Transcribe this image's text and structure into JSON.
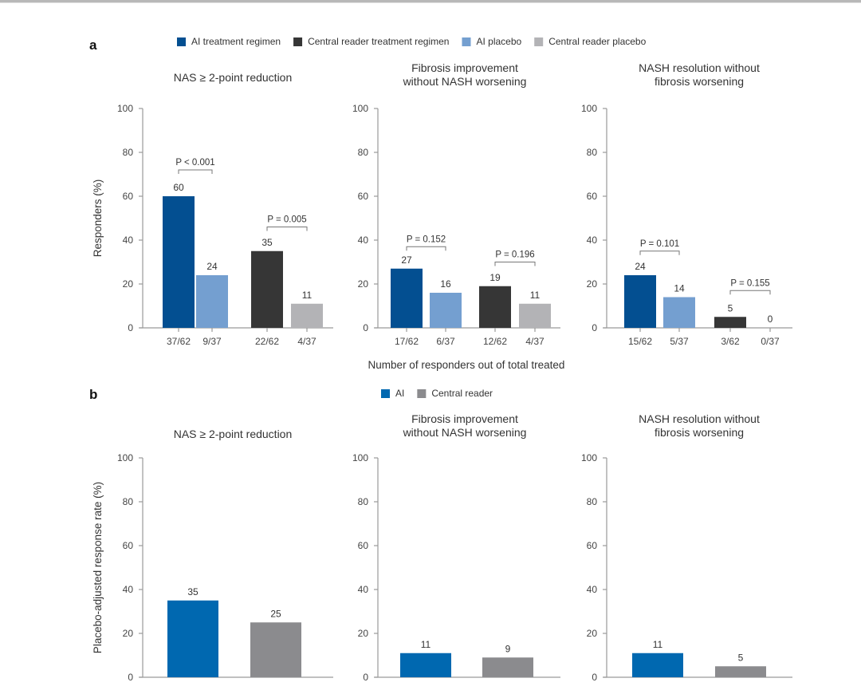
{
  "chart_data": [
    {
      "panel": "a",
      "type": "bar",
      "ylabel": "Responders (%)",
      "xlabel": "Number of responders out of total treated",
      "ylim": [
        0,
        100
      ],
      "yticks": [
        0,
        20,
        40,
        60,
        80,
        100
      ],
      "legend": [
        {
          "name": "AI treatment regimen",
          "color": "#034f91"
        },
        {
          "name": "Central reader treatment regimen",
          "color": "#363636"
        },
        {
          "name": "AI placebo",
          "color": "#749fd0"
        },
        {
          "name": "Central reader placebo",
          "color": "#b3b3b6"
        }
      ],
      "legend_position": "top-center",
      "subplots": [
        {
          "title": [
            "NAS ≥ 2-point reduction"
          ],
          "bars": [
            {
              "series": 0,
              "category": "37/62",
              "value": 60,
              "label": "60"
            },
            {
              "series": 2,
              "category": "9/37",
              "value": 24,
              "label": "24"
            },
            {
              "series": 1,
              "category": "22/62",
              "value": 35,
              "label": "35"
            },
            {
              "series": 3,
              "category": "4/37",
              "value": 11,
              "label": "11"
            }
          ],
          "pvalues": [
            {
              "between": [
                0,
                1
              ],
              "text": "P < 0.001",
              "at": 72
            },
            {
              "between": [
                2,
                3
              ],
              "text": "P = 0.005",
              "at": 46
            }
          ]
        },
        {
          "title": [
            "Fibrosis improvement",
            "without NASH worsening"
          ],
          "bars": [
            {
              "series": 0,
              "category": "17/62",
              "value": 27,
              "label": "27"
            },
            {
              "series": 2,
              "category": "6/37",
              "value": 16,
              "label": "16"
            },
            {
              "series": 1,
              "category": "12/62",
              "value": 19,
              "label": "19"
            },
            {
              "series": 3,
              "category": "4/37",
              "value": 11,
              "label": "11"
            }
          ],
          "pvalues": [
            {
              "between": [
                0,
                1
              ],
              "text": "P = 0.152",
              "at": 37
            },
            {
              "between": [
                2,
                3
              ],
              "text": "P = 0.196",
              "at": 30
            }
          ]
        },
        {
          "title": [
            "NASH resolution without",
            "fibrosis worsening"
          ],
          "bars": [
            {
              "series": 0,
              "category": "15/62",
              "value": 24,
              "label": "24"
            },
            {
              "series": 2,
              "category": "5/37",
              "value": 14,
              "label": "14"
            },
            {
              "series": 1,
              "category": "3/62",
              "value": 5,
              "label": "5"
            },
            {
              "series": 3,
              "category": "0/37",
              "value": 0,
              "label": "0"
            }
          ],
          "pvalues": [
            {
              "between": [
                0,
                1
              ],
              "text": "P = 0.101",
              "at": 35
            },
            {
              "between": [
                2,
                3
              ],
              "text": "P = 0.155",
              "at": 17
            }
          ]
        }
      ]
    },
    {
      "panel": "b",
      "type": "bar",
      "ylabel": "Placebo-adjusted response rate (%)",
      "xlabel": "",
      "ylim": [
        0,
        100
      ],
      "yticks": [
        0,
        20,
        40,
        60,
        80,
        100
      ],
      "legend": [
        {
          "name": "AI",
          "color": "#0068b0"
        },
        {
          "name": "Central reader",
          "color": "#8b8b8e"
        }
      ],
      "legend_position": "top-center",
      "subplots": [
        {
          "title": [
            "NAS ≥ 2-point reduction"
          ],
          "bars": [
            {
              "series": 0,
              "category": "AI",
              "value": 35,
              "label": "35"
            },
            {
              "series": 1,
              "category": "Central reader",
              "value": 25,
              "label": "25"
            }
          ]
        },
        {
          "title": [
            "Fibrosis improvement",
            "without NASH worsening"
          ],
          "bars": [
            {
              "series": 0,
              "category": "AI",
              "value": 11,
              "label": "11"
            },
            {
              "series": 1,
              "category": "Central reader",
              "value": 9,
              "label": "9"
            }
          ]
        },
        {
          "title": [
            "NASH resolution without",
            "fibrosis worsening"
          ],
          "bars": [
            {
              "series": 0,
              "category": "AI",
              "value": 11,
              "label": "11"
            },
            {
              "series": 1,
              "category": "Central reader",
              "value": 5,
              "label": "5"
            }
          ]
        }
      ]
    }
  ],
  "labels": {
    "panel_a": "a",
    "panel_b": "b"
  }
}
